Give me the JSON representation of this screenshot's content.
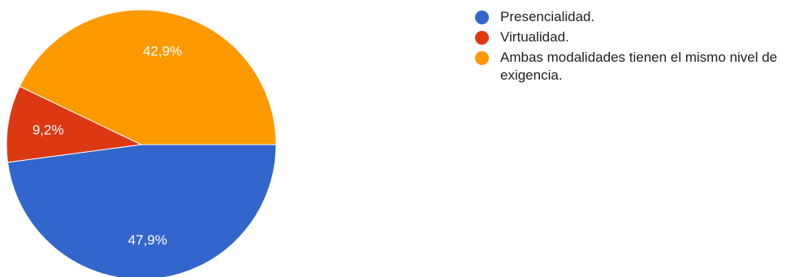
{
  "chart_data": {
    "type": "pie",
    "title": "",
    "slices": [
      {
        "label": "Presencialidad.",
        "value": 47.9,
        "value_label": "47,9%",
        "color": "#3366cc"
      },
      {
        "label": "Virtualidad.",
        "value": 9.2,
        "value_label": "9,2%",
        "color": "#dc3912"
      },
      {
        "label": "Ambas modalidades tienen el mismo nivel de exigencia.",
        "value": 42.9,
        "value_label": "42,9%",
        "color": "#ff9900"
      }
    ],
    "legend_position": "right",
    "start_angle": "3 o'clock, clockwise"
  }
}
